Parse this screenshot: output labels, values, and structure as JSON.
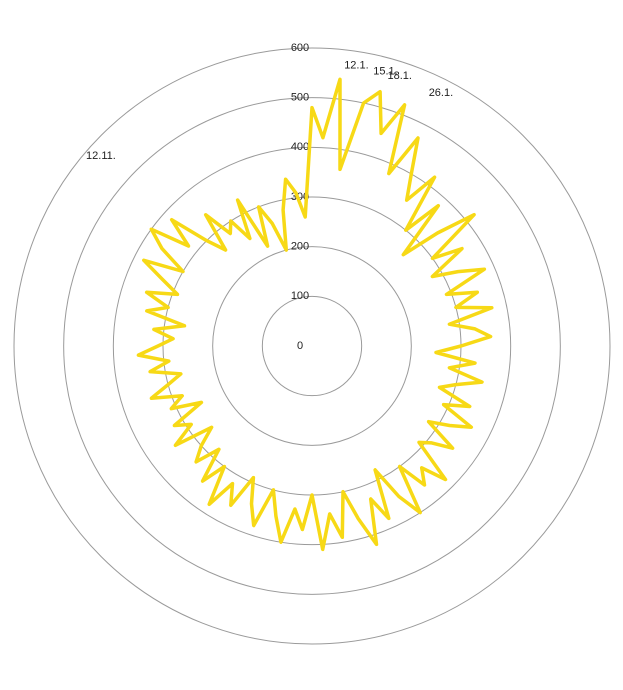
{
  "chart_data": {
    "type": "polar-line",
    "categories": [
      null,
      null,
      null,
      "12.1.",
      null,
      "15.1.",
      "18.1.",
      null,
      null,
      "26.1.",
      null,
      null,
      null,
      null,
      null,
      null,
      null,
      null,
      null,
      null,
      null,
      null,
      null,
      null,
      null,
      null,
      null,
      null,
      null,
      null,
      null,
      null,
      null,
      null,
      null,
      null,
      null,
      null,
      null,
      null,
      null,
      null,
      null,
      null,
      null,
      null,
      null,
      null,
      null,
      null,
      null,
      null,
      null,
      null,
      null,
      null,
      null,
      null,
      null,
      null,
      null,
      null,
      null,
      null,
      null,
      null,
      null,
      null,
      null,
      null,
      null,
      null,
      null,
      null,
      null,
      null,
      null,
      null,
      null,
      null,
      null,
      null,
      null,
      null,
      null,
      null,
      null,
      null,
      null,
      null,
      null,
      null,
      null,
      null,
      null,
      null,
      null,
      null,
      null,
      null,
      null,
      null,
      null,
      null,
      "12.11.",
      null,
      null,
      null,
      null,
      null,
      null,
      null,
      null,
      null,
      null,
      null,
      null,
      null,
      null,
      null
    ],
    "values": [
      480,
      420,
      540,
      360,
      500,
      530,
      450,
      520,
      380,
      470,
      400,
      350,
      420,
      300,
      380,
      260,
      340,
      420,
      300,
      360,
      280,
      330,
      380,
      290,
      350,
      300,
      370,
      280,
      330,
      360,
      300,
      250,
      330,
      280,
      350,
      300,
      270,
      340,
      290,
      360,
      320,
      280,
      350,
      310,
      290,
      380,
      330,
      360,
      300,
      400,
      350,
      280,
      380,
      330,
      420,
      360,
      300,
      390,
      340,
      410,
      300,
      370,
      330,
      400,
      350,
      300,
      380,
      340,
      290,
      360,
      320,
      380,
      300,
      350,
      280,
      330,
      300,
      260,
      340,
      290,
      320,
      250,
      310,
      280,
      340,
      300,
      270,
      330,
      290,
      350,
      310,
      280,
      320,
      260,
      340,
      300,
      350,
      290,
      330,
      380,
      300,
      360,
      400,
      320,
      380,
      300,
      260,
      340,
      280,
      300,
      250,
      330,
      220,
      300,
      260,
      200,
      280,
      340,
      310,
      260
    ],
    "color": "#f7d916",
    "rlim": [
      0,
      600
    ],
    "rticks": [
      0,
      100,
      200,
      300,
      400,
      500,
      600
    ],
    "grid": true
  }
}
